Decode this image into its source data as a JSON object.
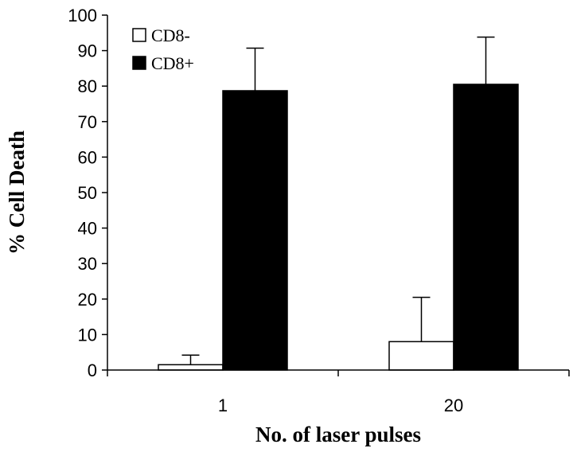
{
  "chart_data": {
    "type": "bar",
    "title": "",
    "xlabel": "No. of laser pulses",
    "ylabel": "% Cell Death",
    "categories": [
      "1",
      "20"
    ],
    "ylim": [
      0,
      100
    ],
    "yticks": [
      0,
      10,
      20,
      30,
      40,
      50,
      60,
      70,
      80,
      90,
      100
    ],
    "series": [
      {
        "name": "CD8-",
        "values": [
          1.5,
          8
        ],
        "errors": [
          2.7,
          12.5
        ],
        "color": "#ffffff"
      },
      {
        "name": "CD8+",
        "values": [
          78.7,
          80.5
        ],
        "errors": [
          12,
          13.3
        ],
        "color": "#000000"
      }
    ],
    "legend_position": "top-left",
    "grid": false
  }
}
